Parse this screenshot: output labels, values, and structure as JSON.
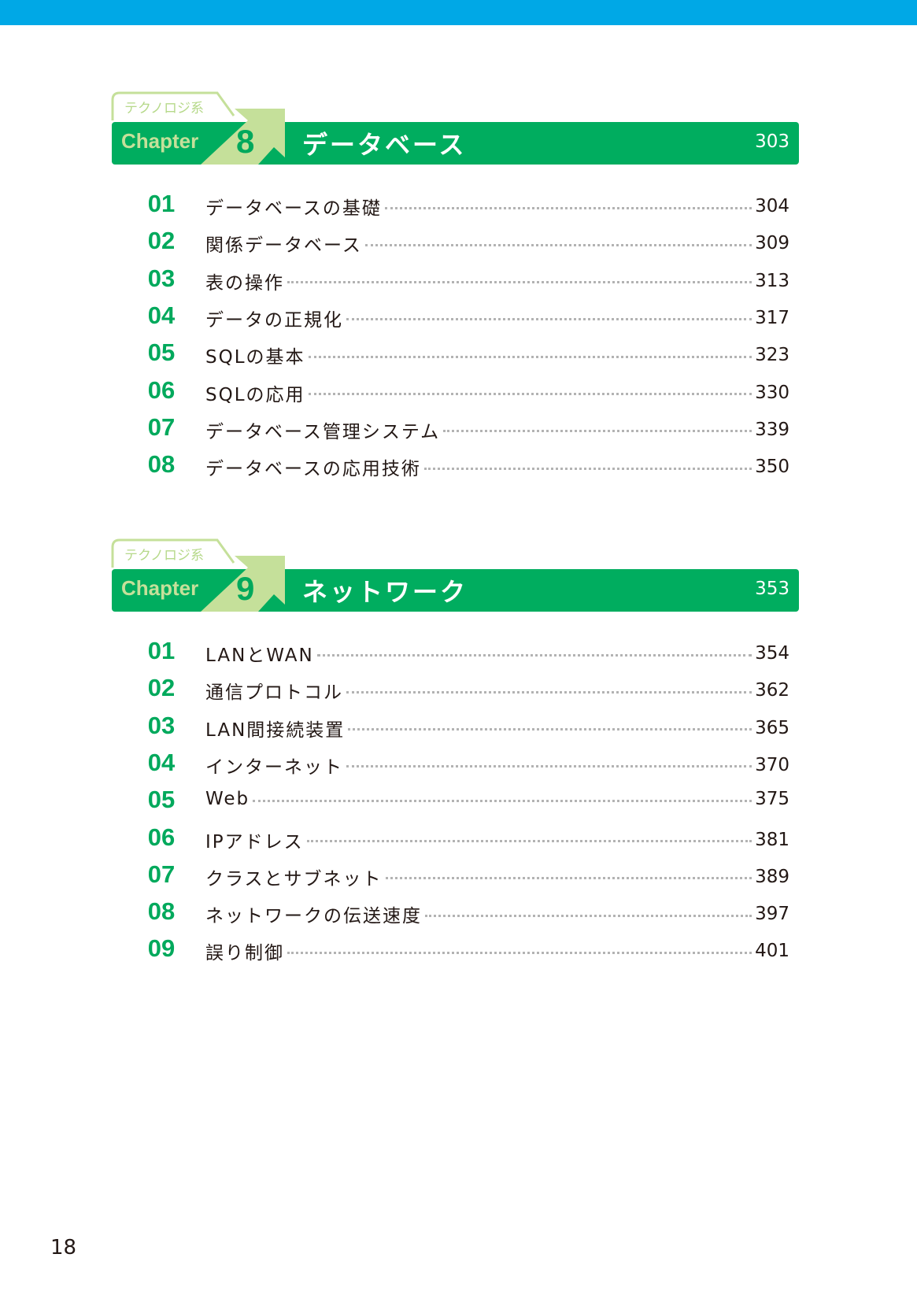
{
  "colors": {
    "top_bar": "#00a8e6",
    "chapter_bar": "#00ad5f",
    "accent_light": "#c5e09a",
    "number_green": "#00a95c"
  },
  "chapters": [
    {
      "category": "テクノロジ系",
      "label": "Chapter",
      "number": "8",
      "title": "データベース",
      "page": "303",
      "sections": [
        {
          "num": "01",
          "title": "データベースの基礎",
          "page": "304"
        },
        {
          "num": "02",
          "title": "関係データベース",
          "page": "309"
        },
        {
          "num": "03",
          "title": "表の操作",
          "page": "313"
        },
        {
          "num": "04",
          "title": "データの正規化",
          "page": "317"
        },
        {
          "num": "05",
          "title": "SQLの基本",
          "page": "323"
        },
        {
          "num": "06",
          "title": "SQLの応用",
          "page": "330"
        },
        {
          "num": "07",
          "title": "データベース管理システム",
          "page": "339"
        },
        {
          "num": "08",
          "title": "データベースの応用技術",
          "page": "350"
        }
      ]
    },
    {
      "category": "テクノロジ系",
      "label": "Chapter",
      "number": "9",
      "title": "ネットワーク",
      "page": "353",
      "sections": [
        {
          "num": "01",
          "title": "LANとWAN",
          "page": "354"
        },
        {
          "num": "02",
          "title": "通信プロトコル",
          "page": "362"
        },
        {
          "num": "03",
          "title": "LAN間接続装置",
          "page": "365"
        },
        {
          "num": "04",
          "title": "インターネット",
          "page": "370"
        },
        {
          "num": "05",
          "title": "Web",
          "page": "375"
        },
        {
          "num": "06",
          "title": "IPアドレス",
          "page": "381"
        },
        {
          "num": "07",
          "title": "クラスとサブネット",
          "page": "389"
        },
        {
          "num": "08",
          "title": "ネットワークの伝送速度",
          "page": "397"
        },
        {
          "num": "09",
          "title": "誤り制御",
          "page": "401"
        }
      ]
    }
  ],
  "folio": "18"
}
